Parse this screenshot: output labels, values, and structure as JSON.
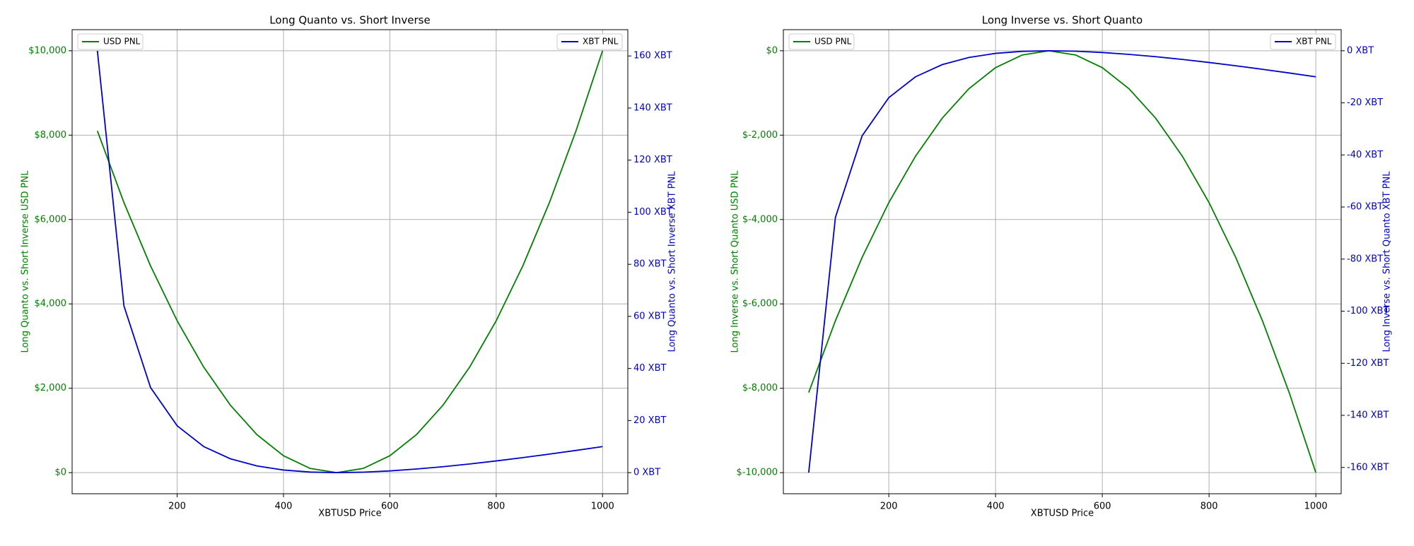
{
  "chart_data": [
    {
      "type": "line",
      "title": "Long Quanto vs. Short Inverse",
      "x_label": "XBTUSD Price",
      "y_label": "Long Quanto vs. Short Inverse USD PNL",
      "y2_label": "Long Quanto vs. Short Inverse XBT PNL",
      "x": [
        50,
        100,
        150,
        200,
        250,
        300,
        350,
        400,
        450,
        500,
        550,
        600,
        650,
        700,
        750,
        800,
        850,
        900,
        950,
        1000
      ],
      "series": [
        {
          "name": "USD PNL",
          "color": "#008000",
          "legend": "upper left",
          "values": [
            8100,
            6400,
            4900,
            3600,
            2500,
            1600,
            900,
            400,
            100,
            0,
            100,
            400,
            900,
            1600,
            2500,
            3600,
            4900,
            6400,
            8100,
            10000
          ]
        },
        {
          "name": "XBT PNL",
          "color": "#0000cc",
          "legend": "upper right",
          "axis": "y2",
          "values": [
            162,
            64,
            32.667,
            18,
            10,
            5.333,
            2.571,
            1,
            0.222,
            0,
            0.182,
            0.667,
            1.385,
            2.286,
            3.333,
            4.5,
            5.765,
            7.111,
            8.526,
            10
          ]
        }
      ],
      "xlim": [
        2.5,
        1047.5
      ],
      "xticks": [
        200,
        400,
        600,
        800,
        1000
      ],
      "ylim": [
        -500,
        10500
      ],
      "yticks": [
        {
          "value": 0,
          "label": "$0"
        },
        {
          "value": 2000,
          "label": "$2,000"
        },
        {
          "value": 4000,
          "label": "$4,000"
        },
        {
          "value": 6000,
          "label": "$6,000"
        },
        {
          "value": 8000,
          "label": "$8,000"
        },
        {
          "value": 10000,
          "label": "$10,000"
        }
      ],
      "y2lim": [
        -8.1,
        170.1
      ],
      "y2ticks": [
        {
          "value": 0,
          "label": "0 XBT"
        },
        {
          "value": 20,
          "label": "20 XBT"
        },
        {
          "value": 40,
          "label": "40 XBT"
        },
        {
          "value": 60,
          "label": "60 XBT"
        },
        {
          "value": 80,
          "label": "80 XBT"
        },
        {
          "value": 100,
          "label": "100 XBT"
        },
        {
          "value": 120,
          "label": "120 XBT"
        },
        {
          "value": 140,
          "label": "140 XBT"
        },
        {
          "value": 160,
          "label": "160 XBT"
        }
      ],
      "grid": true
    },
    {
      "type": "line",
      "title": "Long Inverse vs. Short Quanto",
      "x_label": "XBTUSD Price",
      "y_label": "Long Inverse vs. Short Quanto USD PNL",
      "y2_label": "Long Inverse vs. Short Quanto XBT PNL",
      "x": [
        50,
        100,
        150,
        200,
        250,
        300,
        350,
        400,
        450,
        500,
        550,
        600,
        650,
        700,
        750,
        800,
        850,
        900,
        950,
        1000
      ],
      "series": [
        {
          "name": "USD PNL",
          "color": "#008000",
          "legend": "upper left",
          "values": [
            -8100,
            -6400,
            -4900,
            -3600,
            -2500,
            -1600,
            -900,
            -400,
            -100,
            0,
            -100,
            -400,
            -900,
            -1600,
            -2500,
            -3600,
            -4900,
            -6400,
            -8100,
            -10000
          ]
        },
        {
          "name": "XBT PNL",
          "color": "#0000cc",
          "legend": "upper right",
          "axis": "y2",
          "values": [
            -162,
            -64,
            -32.667,
            -18,
            -10,
            -5.333,
            -2.571,
            -1,
            -0.222,
            0,
            -0.182,
            -0.667,
            -1.385,
            -2.286,
            -3.333,
            -4.5,
            -5.765,
            -7.111,
            -8.526,
            -10
          ]
        }
      ],
      "xlim": [
        2.5,
        1047.5
      ],
      "xticks": [
        200,
        400,
        600,
        800,
        1000
      ],
      "ylim": [
        -10500,
        500
      ],
      "yticks": [
        {
          "value": -10000,
          "label": "$-10,000"
        },
        {
          "value": -8000,
          "label": "$-8,000"
        },
        {
          "value": -6000,
          "label": "$-6,000"
        },
        {
          "value": -4000,
          "label": "$-4,000"
        },
        {
          "value": -2000,
          "label": "$-2,000"
        },
        {
          "value": 0,
          "label": "$0"
        }
      ],
      "y2lim": [
        -170.1,
        8.1
      ],
      "y2ticks": [
        {
          "value": -160,
          "label": "-160 XBT"
        },
        {
          "value": -140,
          "label": "-140 XBT"
        },
        {
          "value": -120,
          "label": "-120 XBT"
        },
        {
          "value": -100,
          "label": "-100 XBT"
        },
        {
          "value": -80,
          "label": "-80 XBT"
        },
        {
          "value": -60,
          "label": "-60 XBT"
        },
        {
          "value": -40,
          "label": "-40 XBT"
        },
        {
          "value": -20,
          "label": "-20 XBT"
        },
        {
          "value": 0,
          "label": "0 XBT"
        }
      ],
      "grid": true
    }
  ]
}
